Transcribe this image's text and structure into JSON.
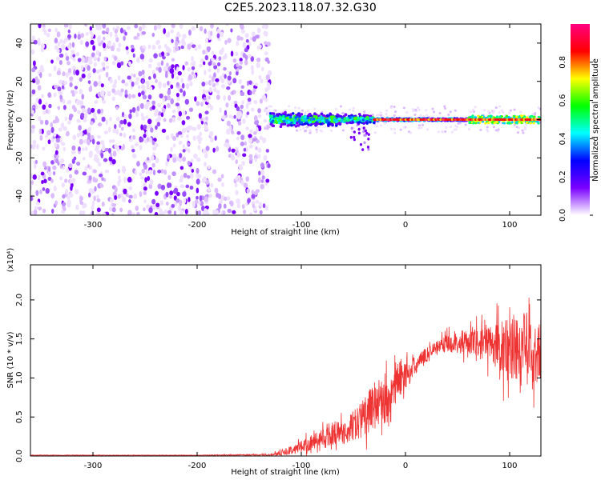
{
  "page": {
    "title": "C2E5.2023.118.07.32.G30"
  },
  "chart_data": [
    {
      "type": "heatmap",
      "xlabel": "Height of straight line (km)",
      "ylabel": "Frequency (Hz)",
      "xlim": [
        -360,
        130
      ],
      "ylim": [
        -50,
        50
      ],
      "x_ticks": [
        -300,
        -200,
        -100,
        0,
        100
      ],
      "y_ticks": [
        -40,
        -20,
        0,
        20,
        40
      ],
      "colorbar": {
        "label": "Normalized spectral amplitude",
        "range": [
          0,
          1
        ],
        "ticks": [
          0.0,
          0.2,
          0.4,
          0.6,
          0.8
        ],
        "colormap": [
          "#ffffff",
          "#7a00ff",
          "#0000ff",
          "#00ffff",
          "#00ff00",
          "#ffff00",
          "#ff0000",
          "#ff0080"
        ]
      },
      "regions": [
        {
          "x": [
            -360,
            -130
          ],
          "freq": [
            -50,
            50
          ],
          "level": 0.12,
          "pattern": "noise"
        },
        {
          "x": [
            -130,
            -30
          ],
          "freq": [
            -4,
            4
          ],
          "level": 0.35,
          "pattern": "broad band"
        },
        {
          "x": [
            -30,
            130
          ],
          "freq": [
            -1,
            1
          ],
          "level": 0.9,
          "pattern": "narrow line at 0 Hz"
        }
      ]
    },
    {
      "type": "line",
      "xlabel": "Height of straight line (km)",
      "ylabel": "SNR (10 * v/v)",
      "y_multiplier": "(x10⁴)",
      "xlim": [
        -360,
        130
      ],
      "ylim": [
        0,
        2.45
      ],
      "x_ticks": [
        -300,
        -200,
        -100,
        0,
        100
      ],
      "y_ticks": [
        0.0,
        0.5,
        1.0,
        1.5,
        2.0
      ],
      "series": [
        {
          "color": "#ee3333",
          "x": [
            -360,
            -300,
            -200,
            -130,
            -115,
            -100,
            -90,
            -80,
            -70,
            -60,
            -50,
            -40,
            -30,
            -20,
            -15,
            -10,
            0,
            10,
            20,
            30,
            40,
            60,
            80,
            100,
            110,
            120,
            130
          ],
          "y": [
            0.01,
            0.01,
            0.01,
            0.015,
            0.05,
            0.12,
            0.18,
            0.22,
            0.28,
            0.3,
            0.38,
            0.5,
            0.65,
            0.75,
            0.6,
            0.95,
            1.05,
            1.15,
            1.3,
            1.4,
            1.45,
            1.45,
            1.45,
            1.35,
            1.4,
            1.3,
            1.35
          ],
          "noise_amplitude": [
            0.003,
            0.003,
            0.003,
            0.01,
            0.04,
            0.08,
            0.1,
            0.12,
            0.15,
            0.15,
            0.2,
            0.25,
            0.3,
            0.35,
            0.25,
            0.3,
            0.2,
            0.12,
            0.1,
            0.08,
            0.12,
            0.15,
            0.25,
            0.45,
            0.5,
            0.5,
            0.45
          ]
        }
      ]
    }
  ]
}
